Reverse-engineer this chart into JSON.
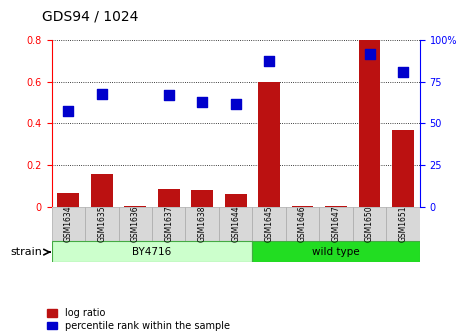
{
  "title": "GDS94 / 1024",
  "samples": [
    "GSM1634",
    "GSM1635",
    "GSM1636",
    "GSM1637",
    "GSM1638",
    "GSM1644",
    "GSM1645",
    "GSM1646",
    "GSM1647",
    "GSM1650",
    "GSM1651"
  ],
  "log_ratio": [
    0.065,
    0.155,
    0.002,
    0.085,
    0.08,
    0.06,
    0.6,
    0.002,
    0.002,
    0.8,
    0.37
  ],
  "percentile_rank": [
    57.5,
    67.5,
    0,
    67.0,
    63.0,
    62.0,
    87.5,
    0,
    0,
    92.0,
    81.0
  ],
  "show_percentile": [
    true,
    true,
    false,
    true,
    true,
    true,
    true,
    false,
    false,
    true,
    true
  ],
  "bar_color": "#bb1111",
  "point_color": "#0000cc",
  "ylim_left": [
    0,
    0.8
  ],
  "ylim_right": [
    0,
    100
  ],
  "yticks_left": [
    0.0,
    0.2,
    0.4,
    0.6,
    0.8
  ],
  "ytick_labels_left": [
    "0",
    "0.2",
    "0.4",
    "0.6",
    "0.8"
  ],
  "yticks_right": [
    0,
    25,
    50,
    75,
    100
  ],
  "ytick_labels_right": [
    "0",
    "25",
    "50",
    "75",
    "100%"
  ],
  "strain_groups": [
    {
      "label": "BY4716",
      "start": 0,
      "end": 5,
      "color": "#ccffcc"
    },
    {
      "label": "wild type",
      "start": 6,
      "end": 10,
      "color": "#22dd22"
    }
  ],
  "strain_label": "strain",
  "legend_items": [
    {
      "color": "#bb1111",
      "label": "log ratio"
    },
    {
      "color": "#0000cc",
      "label": "percentile rank within the sample"
    }
  ],
  "grid_color": "black",
  "grid_style": "dotted",
  "bar_width": 0.65,
  "point_size": 45,
  "title_fontsize": 10
}
